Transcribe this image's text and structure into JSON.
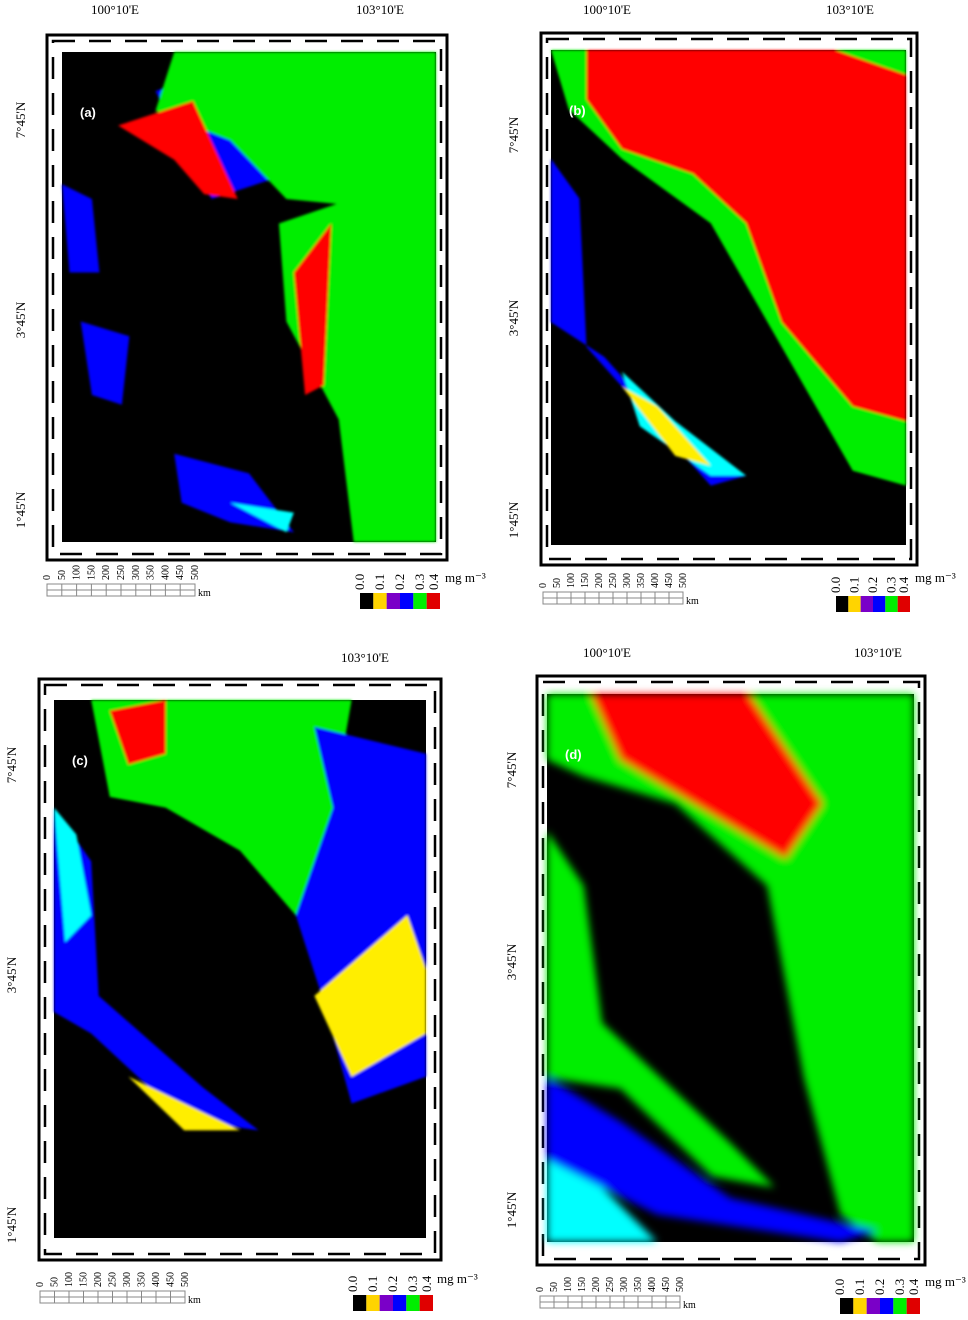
{
  "panels": [
    {
      "label": "(a)",
      "lon_labels": [
        "100°10'E",
        "103°10'E"
      ],
      "lat_labels": [
        "7°45'N",
        "3°45'N",
        "1°45'N"
      ]
    },
    {
      "label": "(b)",
      "lon_labels": [
        "100°10'E",
        "103°10'E"
      ],
      "lat_labels": [
        "7°45'N",
        "3°45'N",
        "1°45'N"
      ]
    },
    {
      "label": "(c)",
      "lon_labels": [
        "103°10'E"
      ],
      "lat_labels": [
        "7°45'N",
        "3°45'N",
        "1°45'N"
      ]
    },
    {
      "label": "(d)",
      "lon_labels": [
        "100°10'E",
        "103°10'E"
      ],
      "lat_labels": [
        "7°45'N",
        "3°45'N",
        "1°45'N"
      ]
    }
  ],
  "scale_bar": {
    "ticks": [
      "0",
      "50",
      "100",
      "150",
      "200",
      "250",
      "300",
      "350",
      "400",
      "450",
      "500"
    ],
    "unit": "km"
  },
  "legend": {
    "labels": [
      "0.0",
      "0.1",
      "0.2",
      "0.3",
      "0.4"
    ],
    "unit": "mg m⁻³"
  }
}
